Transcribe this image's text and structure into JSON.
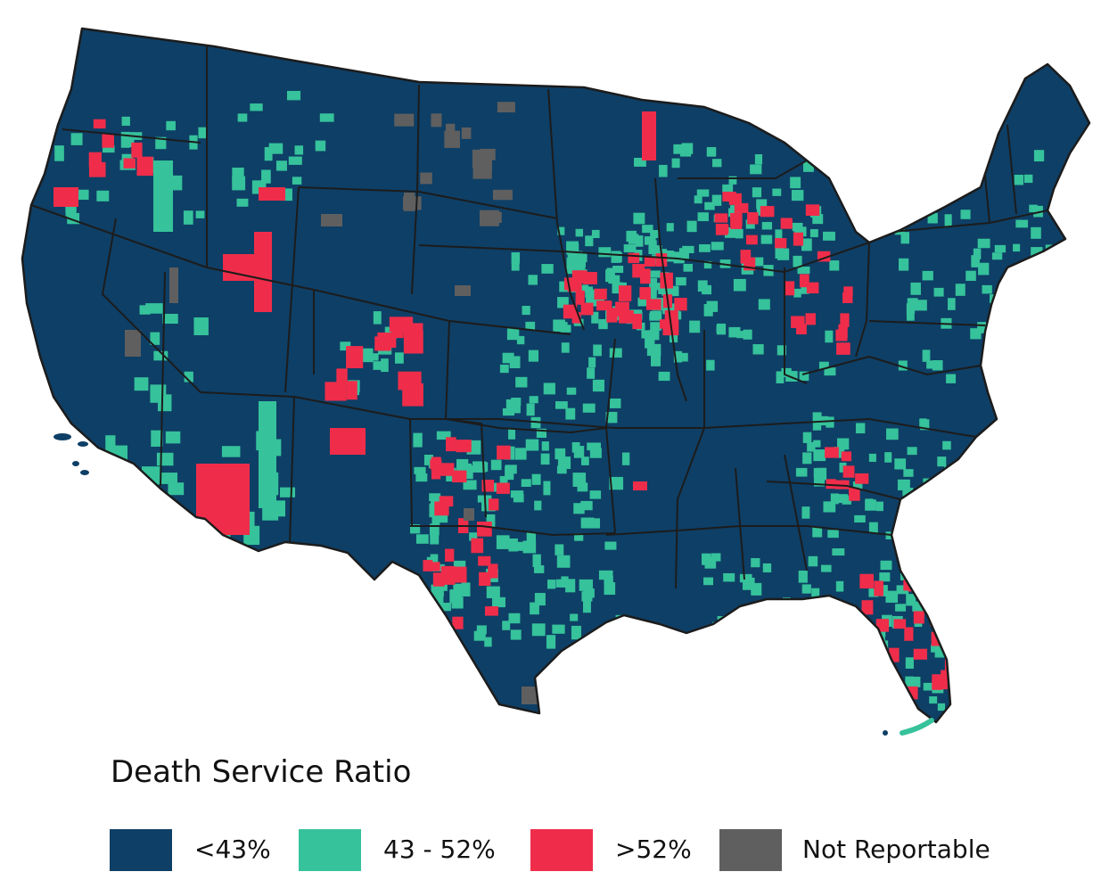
{
  "legend": {
    "title": "Death Service Ratio",
    "items": [
      {
        "label": "<43%",
        "color": "#0e3f66"
      },
      {
        "label": "43 - 52%",
        "color": "#36c29b"
      },
      {
        "label": ">52%",
        "color": "#ef2d4a"
      },
      {
        "label": "Not Reportable",
        "color": "#5f5f5f"
      }
    ]
  },
  "map": {
    "region": "contiguous-united-states",
    "border_color": "#1c1c1c",
    "base_color": "#0e3f66"
  }
}
